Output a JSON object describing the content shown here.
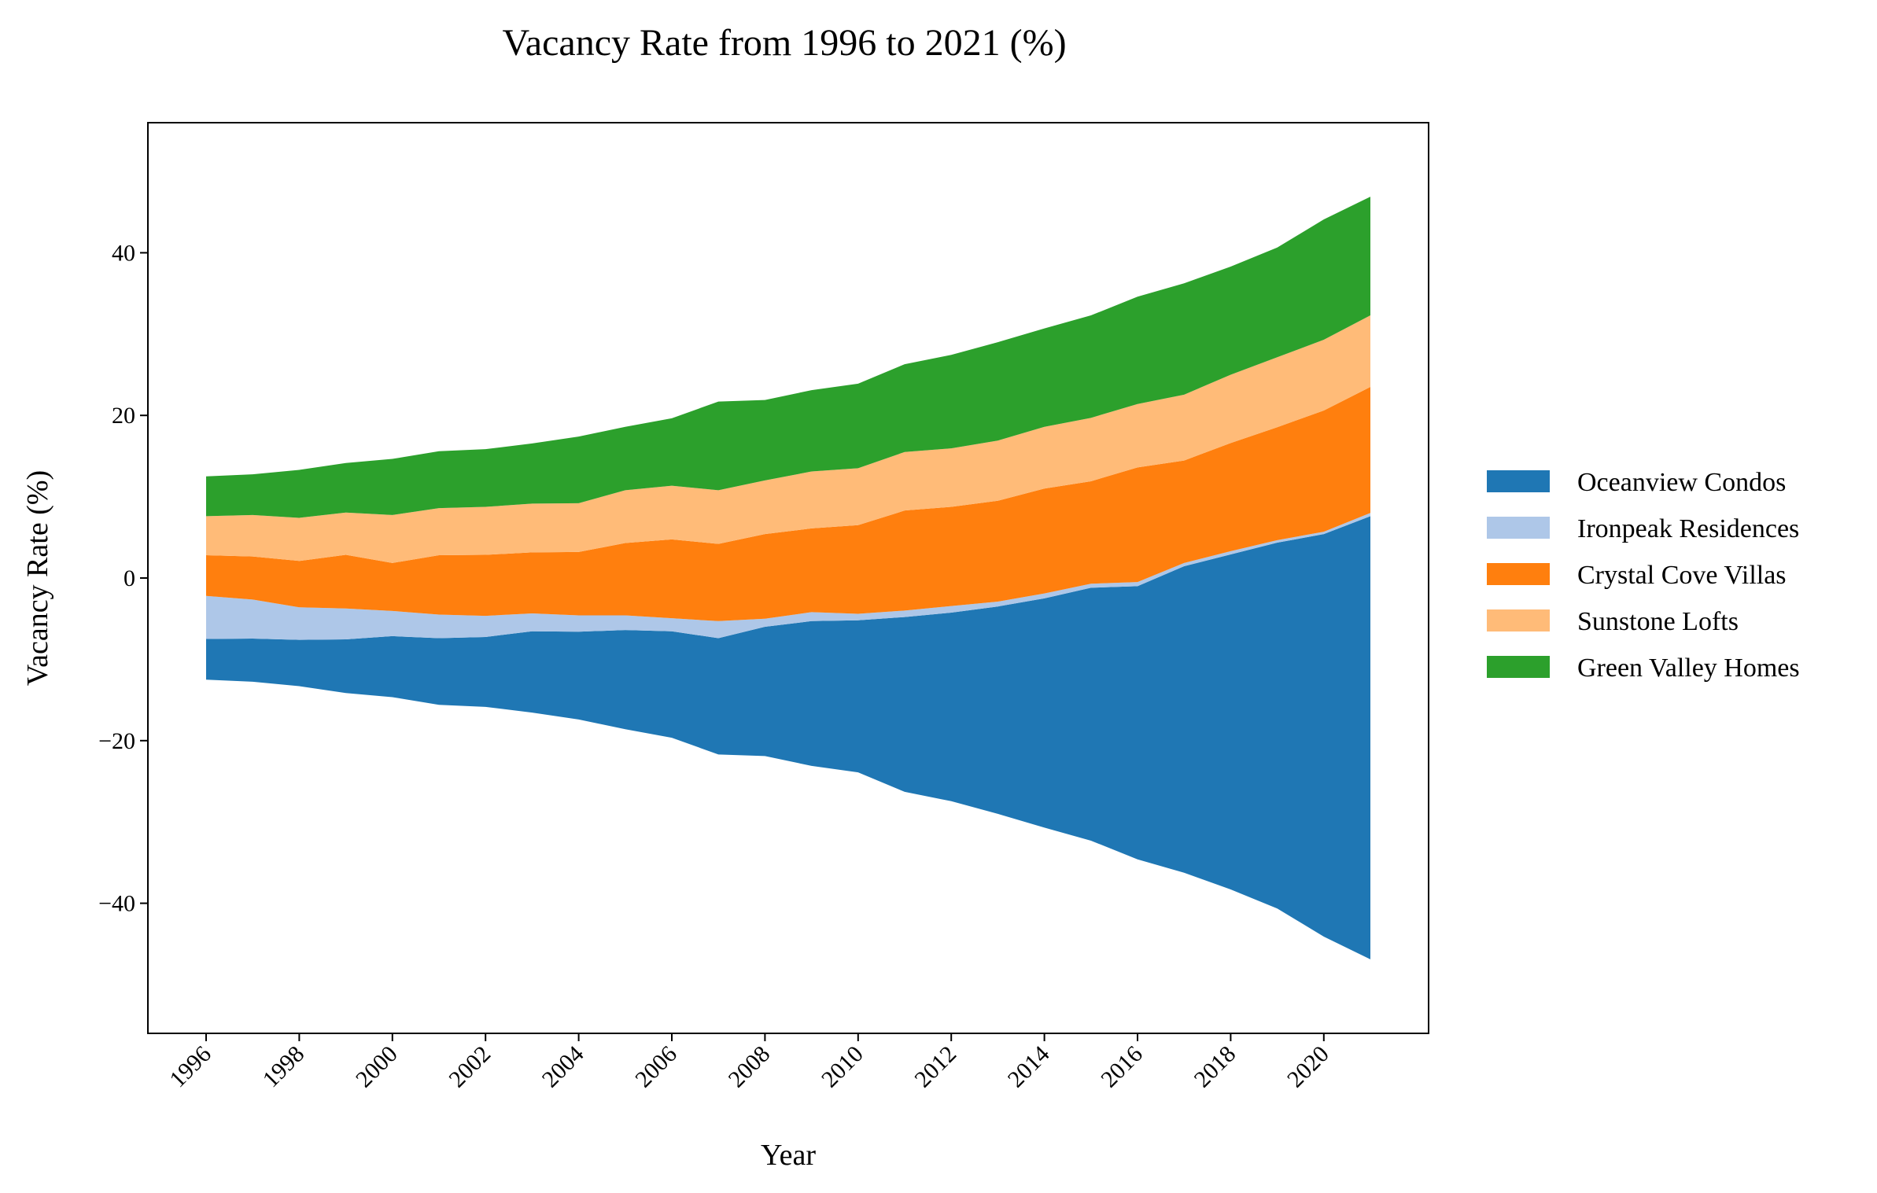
{
  "chart_data": {
    "type": "area",
    "subtype": "streamgraph",
    "baseline": "symmetric",
    "title": "Vacancy Rate from 1996 to 2021 (%)",
    "xlabel": "Year",
    "ylabel": "Vacancy Rate (%)",
    "ylim": [
      -56,
      56
    ],
    "xlim": [
      1994.75,
      2022.25
    ],
    "x": [
      1996,
      1997,
      1998,
      1999,
      2000,
      2001,
      2002,
      2003,
      2004,
      2005,
      2006,
      2007,
      2008,
      2009,
      2010,
      2011,
      2012,
      2013,
      2014,
      2015,
      2016,
      2017,
      2018,
      2019,
      2020,
      2021
    ],
    "xticks": [
      "1996",
      "1998",
      "2000",
      "2002",
      "2004",
      "2006",
      "2008",
      "2010",
      "2012",
      "2014",
      "2016",
      "2018",
      "2020"
    ],
    "yticks": [
      "40",
      "20",
      "0",
      "−20",
      "−40"
    ],
    "ytick_values": [
      40,
      20,
      0,
      -20,
      -40
    ],
    "grid": false,
    "legend_position": "right",
    "series": [
      {
        "name": "Oceanview Condos",
        "color": "#1f77b4",
        "values": [
          5.0,
          5.3,
          5.7,
          6.6,
          7.5,
          8.2,
          8.6,
          10.0,
          10.8,
          12.2,
          13.1,
          14.3,
          15.9,
          17.8,
          18.7,
          21.5,
          23.2,
          25.5,
          28.2,
          31.1,
          33.6,
          37.7,
          41.2,
          45.0,
          49.5,
          54.5
        ]
      },
      {
        "name": "Ironpeak Residences",
        "color": "#aec7e8",
        "values": [
          5.3,
          4.8,
          4.0,
          3.8,
          3.1,
          2.9,
          2.6,
          2.2,
          2.0,
          1.8,
          1.6,
          2.1,
          1.0,
          1.1,
          0.8,
          0.8,
          0.8,
          0.6,
          0.6,
          0.5,
          0.5,
          0.4,
          0.4,
          0.3,
          0.3,
          0.4
        ]
      },
      {
        "name": "Crystal Cove Villas",
        "color": "#ff7f0e",
        "values": [
          5.0,
          5.3,
          5.7,
          6.6,
          5.9,
          7.3,
          7.5,
          7.5,
          7.8,
          8.9,
          9.7,
          9.5,
          10.4,
          10.3,
          10.9,
          12.3,
          12.2,
          12.4,
          12.9,
          12.6,
          14.1,
          12.6,
          13.3,
          13.9,
          14.9,
          15.5
        ]
      },
      {
        "name": "Sunstone Lofts",
        "color": "#ffbb78",
        "values": [
          4.8,
          5.1,
          5.3,
          5.2,
          5.9,
          5.8,
          5.9,
          6.0,
          6.0,
          6.5,
          6.6,
          6.6,
          6.6,
          7.0,
          7.0,
          7.2,
          7.2,
          7.4,
          7.6,
          7.8,
          7.8,
          8.1,
          8.4,
          8.6,
          8.7,
          8.8
        ]
      },
      {
        "name": "Green Valley Homes",
        "color": "#2ca02c",
        "values": [
          4.9,
          5.0,
          5.9,
          6.1,
          6.9,
          7.0,
          7.1,
          7.4,
          8.2,
          7.8,
          8.3,
          10.9,
          9.9,
          10.0,
          10.4,
          10.8,
          11.5,
          12.1,
          12.1,
          12.6,
          13.2,
          13.7,
          13.3,
          13.5,
          14.8,
          14.6
        ]
      }
    ]
  }
}
